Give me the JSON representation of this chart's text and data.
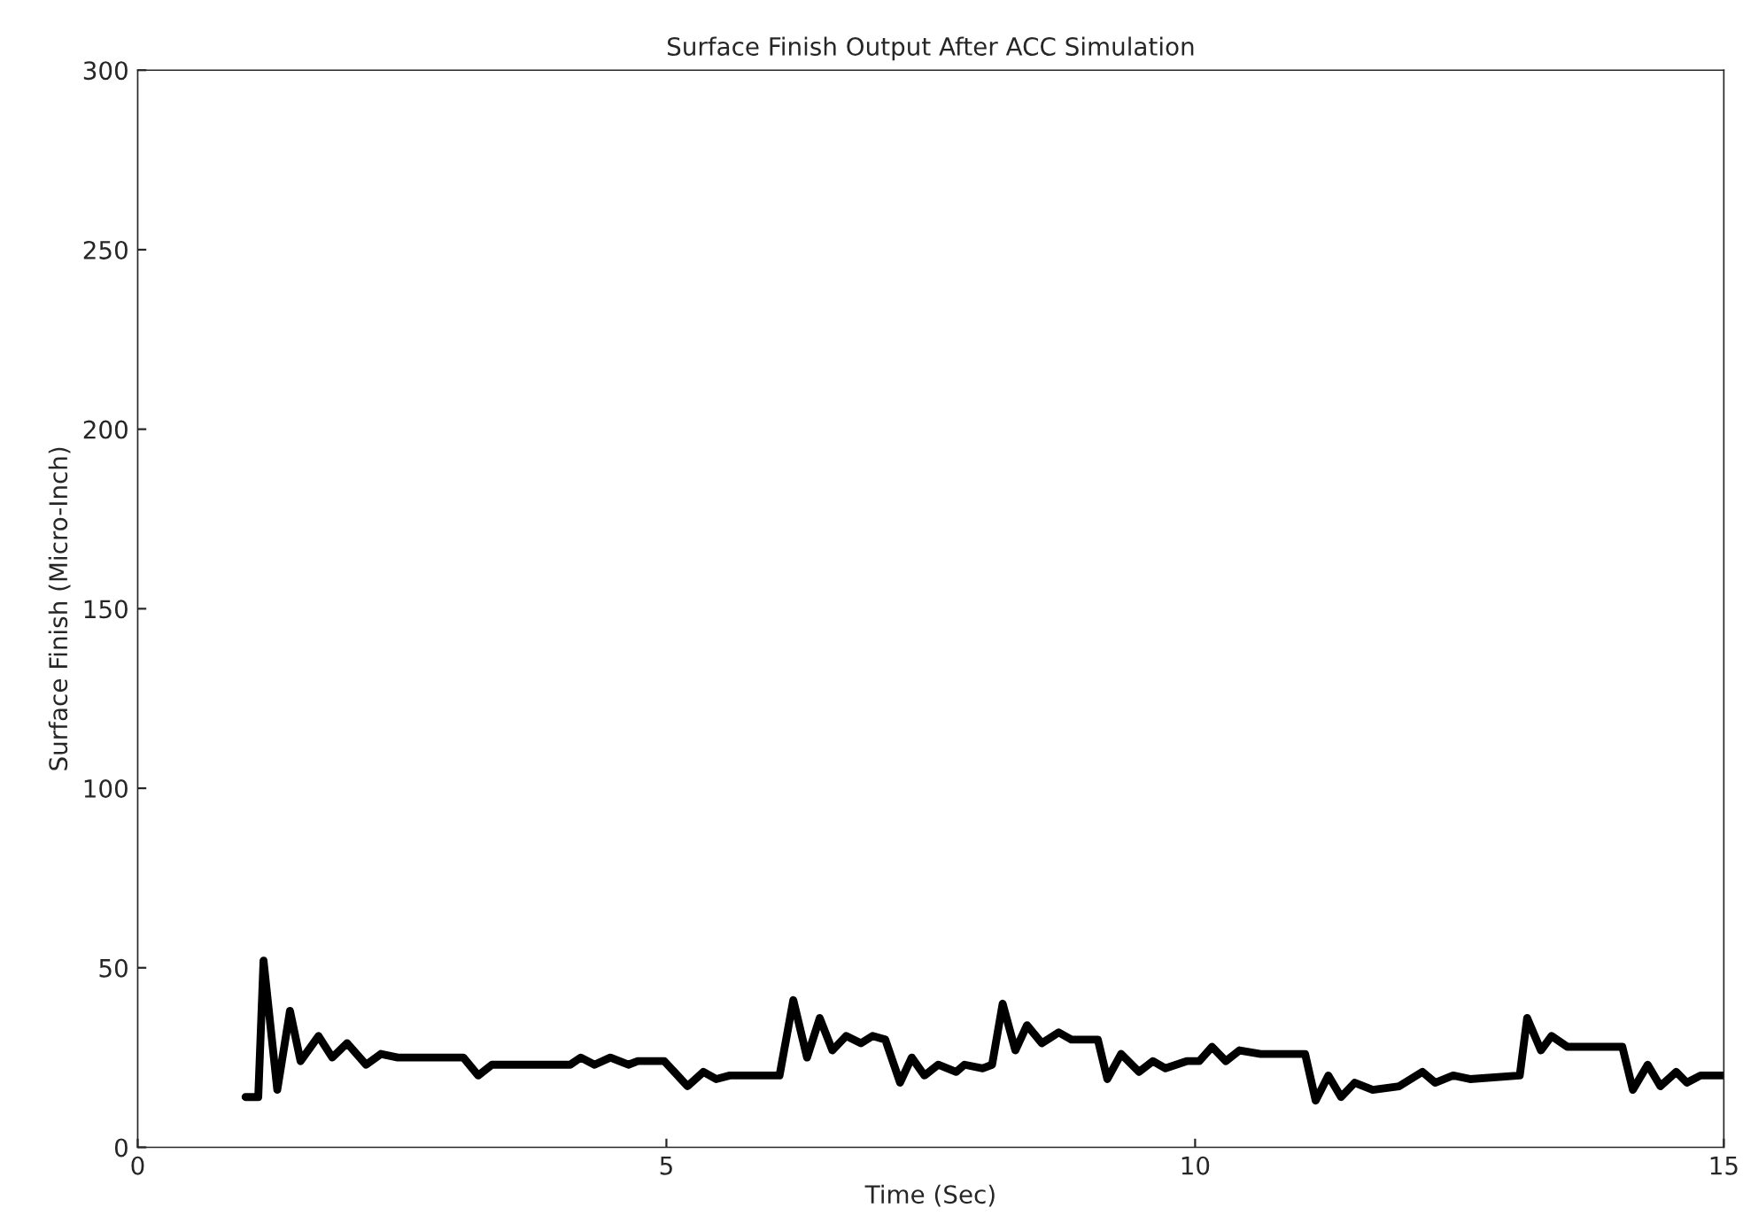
{
  "chart_data": {
    "type": "line",
    "title": "Surface Finish Output After ACC Simulation",
    "xlabel": "Time (Sec)",
    "ylabel": "Surface Finish (Micro-Inch)",
    "xlim": [
      0,
      15
    ],
    "xticks": [
      0,
      5,
      10,
      15
    ],
    "ylim": [
      0,
      300
    ],
    "yticks": [
      0,
      50,
      100,
      150,
      200,
      250,
      300
    ],
    "grid": false,
    "legend": false,
    "series": [
      {
        "color": "#000000",
        "x": [
          1.02,
          1.14,
          1.19,
          1.32,
          1.44,
          1.54,
          1.71,
          1.84,
          1.98,
          2.16,
          2.3,
          2.46,
          3.08,
          3.22,
          3.35,
          4.09,
          4.19,
          4.32,
          4.47,
          4.64,
          4.73,
          4.98,
          5.2,
          5.35,
          5.47,
          5.6,
          6.07,
          6.2,
          6.33,
          6.45,
          6.57,
          6.7,
          6.84,
          6.95,
          7.07,
          7.21,
          7.32,
          7.44,
          7.57,
          7.74,
          7.82,
          7.99,
          8.08,
          8.18,
          8.3,
          8.41,
          8.55,
          8.71,
          8.83,
          9.08,
          9.17,
          9.3,
          9.47,
          9.6,
          9.72,
          9.92,
          10.04,
          10.16,
          10.29,
          10.42,
          10.62,
          11.04,
          11.14,
          11.26,
          11.38,
          11.51,
          11.68,
          11.93,
          12.15,
          12.27,
          12.44,
          12.6,
          13.07,
          13.14,
          13.27,
          13.37,
          13.52,
          13.78,
          14.04,
          14.14,
          14.28,
          14.4,
          14.55,
          14.65,
          14.78,
          15
        ],
        "values": [
          14,
          14,
          52,
          16,
          38,
          24,
          31,
          25,
          29,
          23,
          26,
          25,
          25,
          20,
          23,
          23,
          25,
          23,
          25,
          23,
          24,
          24,
          17,
          21,
          19,
          20,
          20,
          41,
          25,
          36,
          27,
          31,
          29,
          31,
          30,
          18,
          25,
          20,
          23,
          21,
          23,
          22,
          23,
          40,
          27,
          34,
          29,
          32,
          30,
          30,
          19,
          26,
          21,
          24,
          22,
          24,
          24,
          28,
          24,
          27,
          26,
          26,
          13,
          20,
          14,
          18,
          16,
          17,
          21,
          18,
          20,
          19,
          20,
          36,
          27,
          31,
          28,
          28,
          28,
          16,
          23,
          17,
          21,
          18,
          20,
          20
        ]
      }
    ]
  }
}
